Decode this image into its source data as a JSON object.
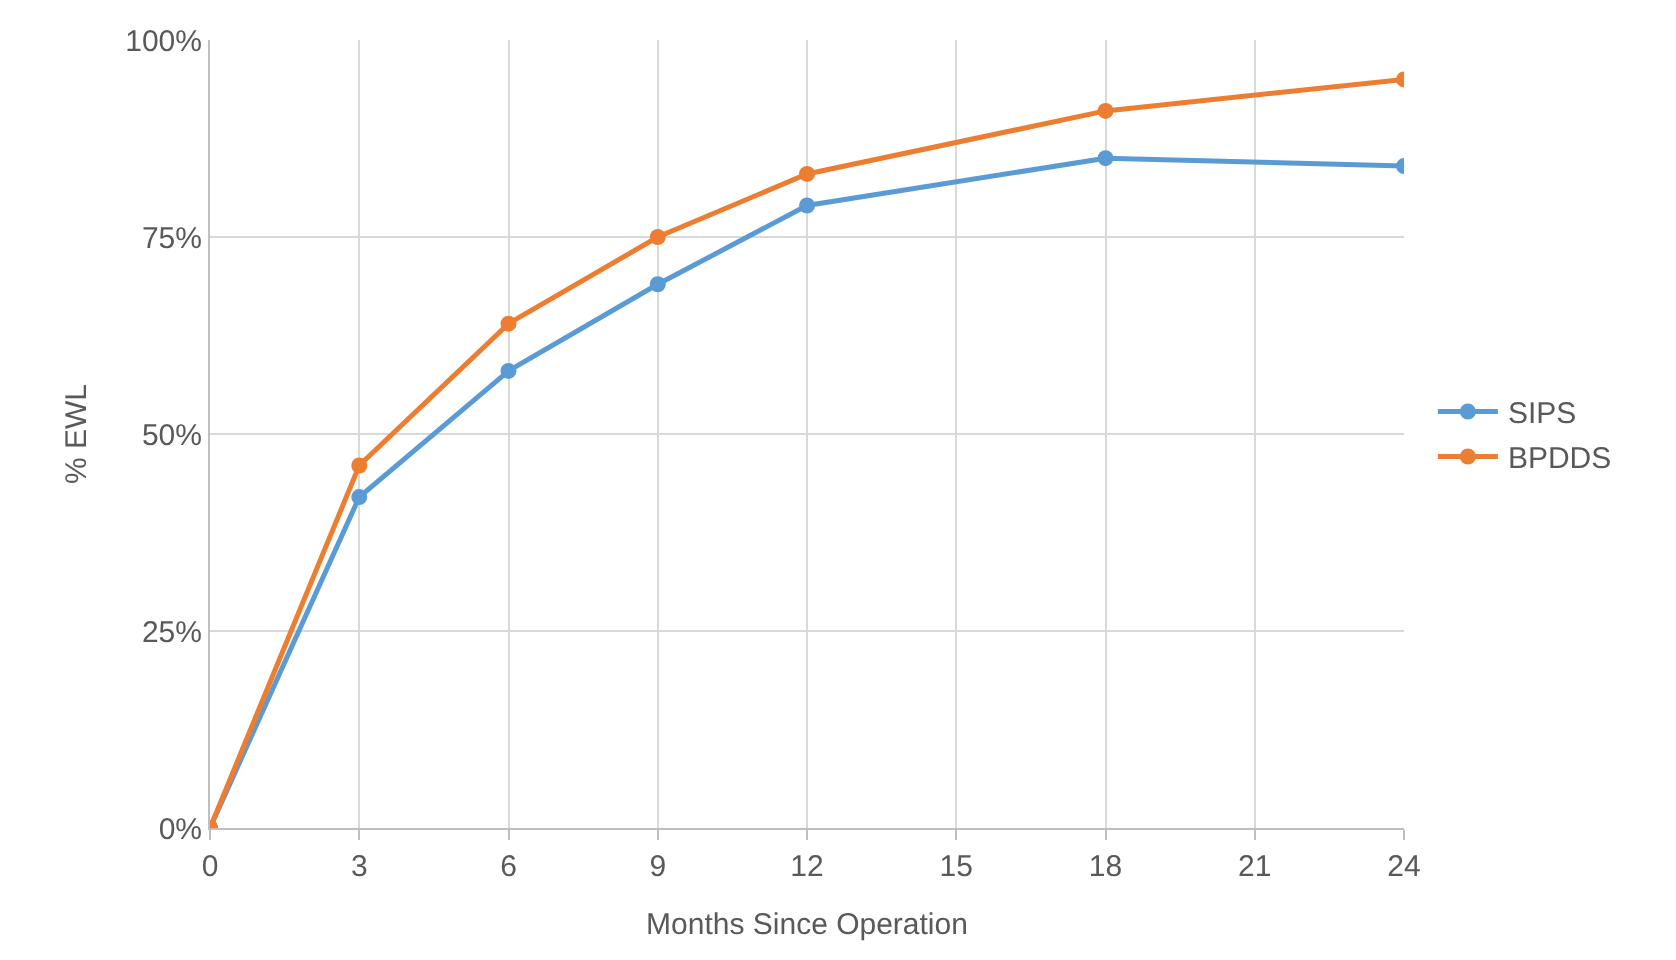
{
  "chart_data": {
    "type": "line",
    "xlabel": "Months Since Operation",
    "ylabel": "% EWL",
    "x": [
      0,
      3,
      6,
      9,
      12,
      18,
      24
    ],
    "series": [
      {
        "name": "SIPS",
        "color": "#5b9bd5",
        "values": [
          0,
          42,
          58,
          69,
          79,
          85,
          84
        ]
      },
      {
        "name": "BPDDS",
        "color": "#ed7d31",
        "values": [
          0,
          46,
          64,
          75,
          83,
          91,
          95
        ]
      }
    ],
    "xlim": [
      0,
      24
    ],
    "xticks": [
      0,
      3,
      6,
      9,
      12,
      15,
      18,
      21,
      24
    ],
    "ylim": [
      0,
      100
    ],
    "yticks": [
      {
        "value": 0,
        "label": "0%"
      },
      {
        "value": 25,
        "label": "25%"
      },
      {
        "value": 50,
        "label": "50%"
      },
      {
        "value": 75,
        "label": "75%"
      },
      {
        "value": 100,
        "label": "100%"
      }
    ],
    "grid": true,
    "legend": "right",
    "marker": "circle",
    "line_style": "solid"
  }
}
